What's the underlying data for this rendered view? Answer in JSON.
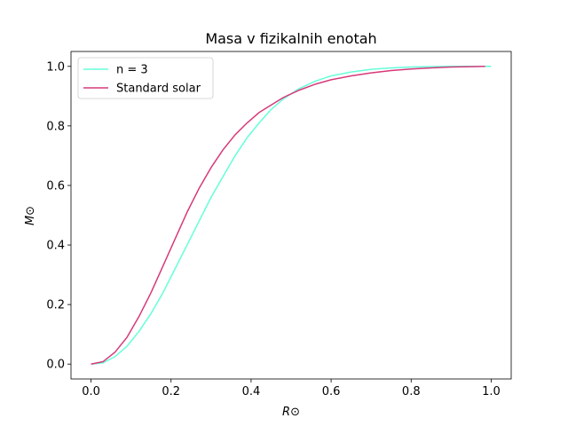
{
  "chart_data": {
    "type": "line",
    "title": "Masa v fizikalnih enotah",
    "xlabel": "R⊙",
    "ylabel": "M⊙",
    "xlim": [
      -0.05,
      1.05
    ],
    "ylim": [
      -0.05,
      1.05
    ],
    "xticks": [
      0.0,
      0.2,
      0.4,
      0.6,
      0.8,
      1.0
    ],
    "xtick_labels": [
      "0.0",
      "0.2",
      "0.4",
      "0.6",
      "0.8",
      "1.0"
    ],
    "yticks": [
      0.0,
      0.2,
      0.4,
      0.6,
      0.8,
      1.0
    ],
    "ytick_labels": [
      "0.0",
      "0.2",
      "0.4",
      "0.6",
      "0.8",
      "1.0"
    ],
    "grid": false,
    "legend_position": "top-left",
    "series": [
      {
        "name": "n = 3",
        "color": "#66ffd9",
        "x": [
          0.0,
          0.03,
          0.06,
          0.09,
          0.12,
          0.15,
          0.18,
          0.21,
          0.24,
          0.27,
          0.3,
          0.33,
          0.36,
          0.39,
          0.42,
          0.45,
          0.48,
          0.52,
          0.56,
          0.6,
          0.65,
          0.7,
          0.75,
          0.8,
          0.85,
          0.9,
          0.95,
          1.0
        ],
        "y": [
          0.0,
          0.004,
          0.025,
          0.06,
          0.11,
          0.17,
          0.24,
          0.32,
          0.4,
          0.48,
          0.56,
          0.63,
          0.7,
          0.76,
          0.81,
          0.855,
          0.89,
          0.925,
          0.95,
          0.968,
          0.981,
          0.99,
          0.995,
          0.998,
          0.999,
          1.0,
          1.0,
          1.0
        ]
      },
      {
        "name": "Standard solar",
        "color": "#d63a7a",
        "x": [
          0.0,
          0.03,
          0.06,
          0.09,
          0.12,
          0.15,
          0.18,
          0.21,
          0.24,
          0.27,
          0.3,
          0.33,
          0.36,
          0.39,
          0.42,
          0.45,
          0.48,
          0.52,
          0.56,
          0.6,
          0.65,
          0.7,
          0.75,
          0.8,
          0.85,
          0.9,
          0.95,
          0.985
        ],
        "y": [
          0.0,
          0.008,
          0.04,
          0.09,
          0.16,
          0.24,
          0.33,
          0.42,
          0.51,
          0.59,
          0.66,
          0.72,
          0.77,
          0.81,
          0.845,
          0.87,
          0.895,
          0.92,
          0.94,
          0.955,
          0.968,
          0.978,
          0.986,
          0.991,
          0.995,
          0.998,
          0.999,
          1.0
        ]
      }
    ]
  }
}
